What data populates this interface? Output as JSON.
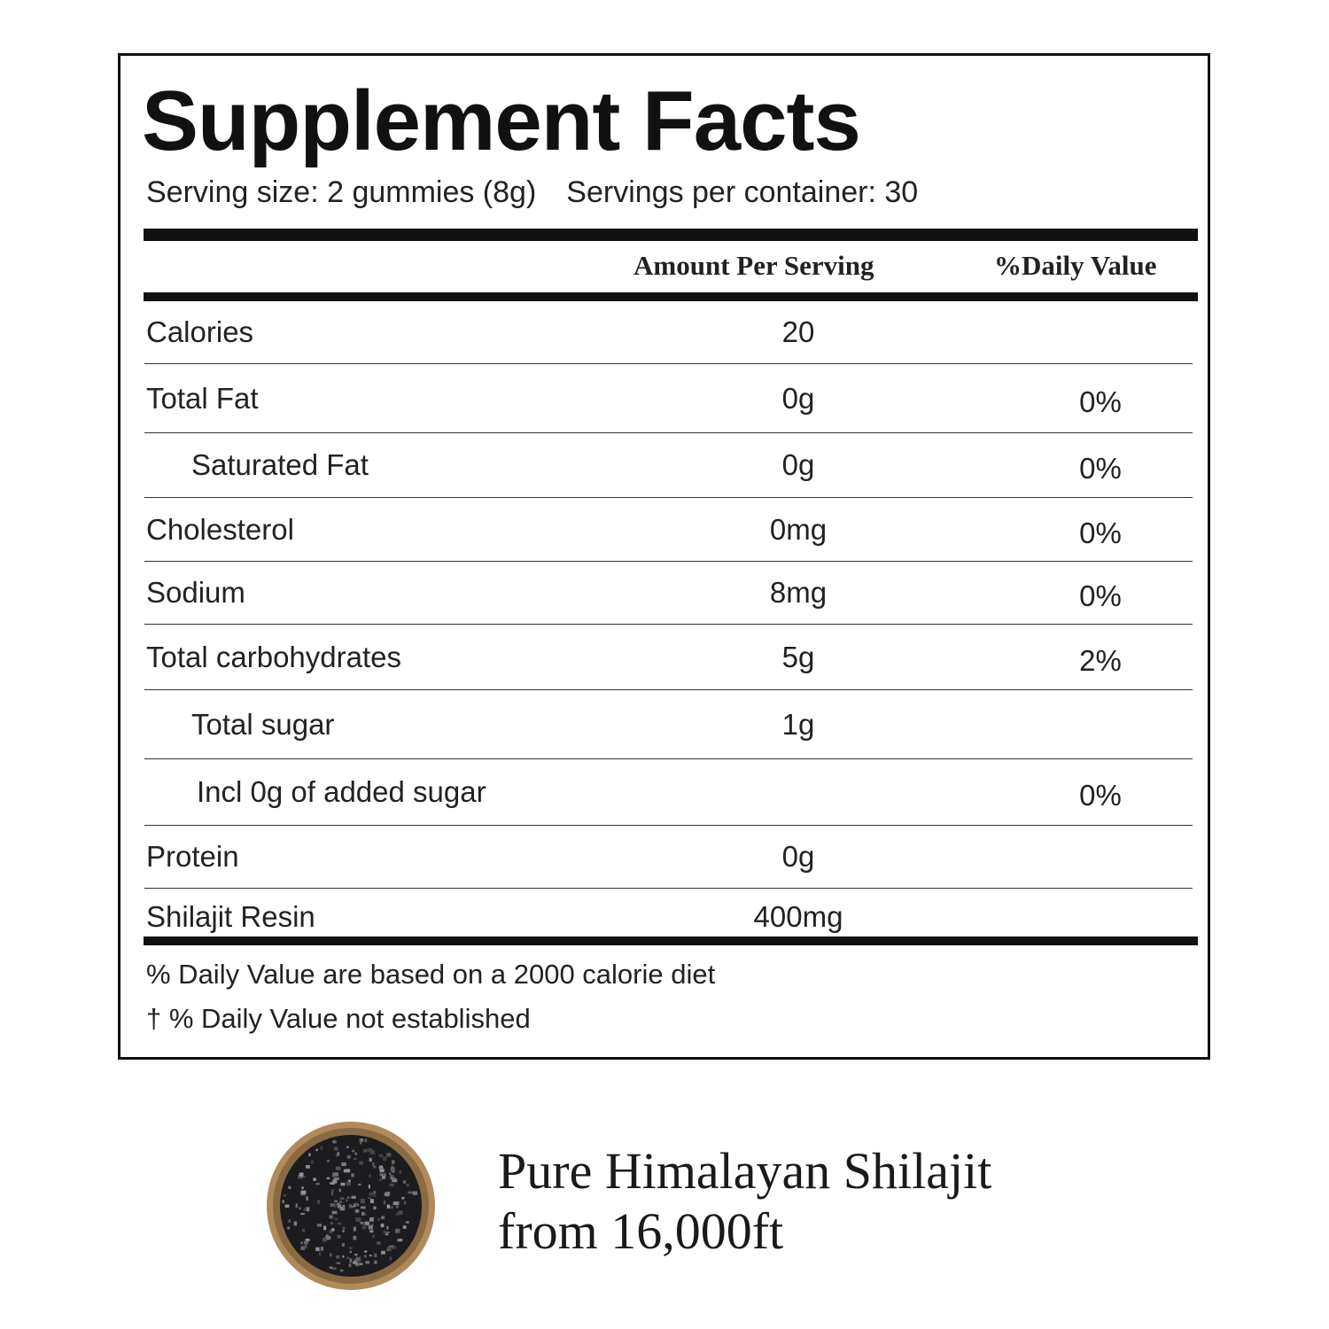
{
  "title": "Supplement Facts",
  "serving_size": "Serving size: 2 gummies (8g)",
  "servings_per_container": "Servings per container: 30",
  "headers": {
    "amount": "Amount Per Serving",
    "daily_value": "%Daily Value"
  },
  "rows": [
    {
      "name": "Calories",
      "amount": "20",
      "dv": ""
    },
    {
      "name": "Total Fat",
      "amount": "0g",
      "dv": "0%"
    },
    {
      "name": "Saturated Fat",
      "amount": "0g",
      "dv": "0%"
    },
    {
      "name": "Cholesterol",
      "amount": "0mg",
      "dv": "0%"
    },
    {
      "name": "Sodium",
      "amount": "8mg",
      "dv": "0%"
    },
    {
      "name": "Total carbohydrates",
      "amount": "5g",
      "dv": "2%"
    },
    {
      "name": "Total sugar",
      "amount": "1g",
      "dv": ""
    },
    {
      "name": "Incl 0g of added sugar",
      "amount": "",
      "dv": "0%"
    },
    {
      "name": "Protein",
      "amount": "0g",
      "dv": ""
    },
    {
      "name": "Shilajit Resin",
      "amount": "400mg",
      "dv": ""
    }
  ],
  "footnotes": [
    "% Daily Value are based on a 2000 calorie diet",
    "† % Daily Value not established"
  ],
  "tagline": {
    "line1": "Pure Himalayan Shilajit",
    "line2": "from 16,000ft"
  }
}
